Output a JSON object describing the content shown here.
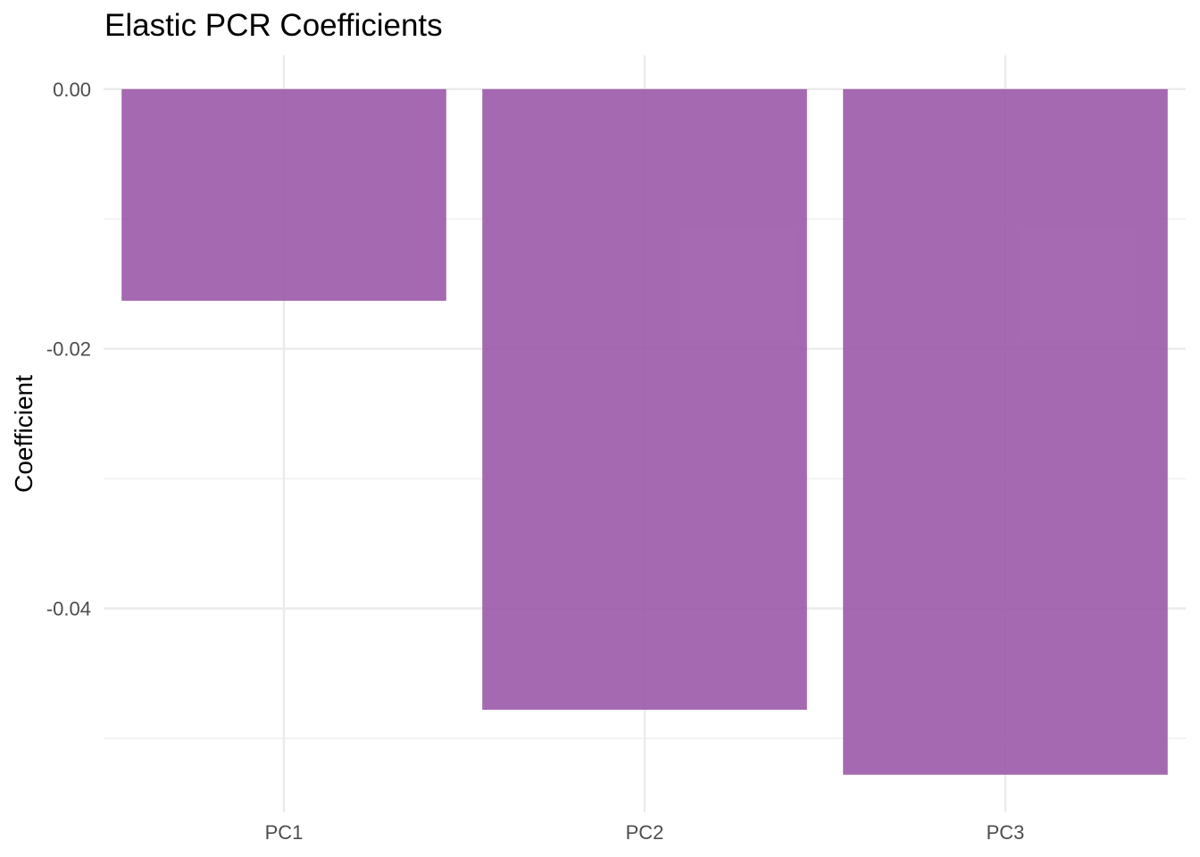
{
  "chart_data": {
    "type": "bar",
    "title": "Elastic PCR Coefficients",
    "xlabel": "",
    "ylabel": "Coefficient",
    "categories": [
      "PC1",
      "PC2",
      "PC3"
    ],
    "values": [
      -0.0163,
      -0.0478,
      -0.0528
    ],
    "ylim": [
      -0.0557,
      0.0026
    ],
    "y_ticks": [
      0,
      -0.02,
      -0.04
    ],
    "y_tick_labels": [
      "0.00",
      "-0.02",
      "-0.04"
    ],
    "y_minor_ticks": [
      -0.01,
      -0.03,
      -0.05
    ],
    "grid": true,
    "legend": "none",
    "bar_color": "#9B59A8",
    "grid_color": "#EBEBEB"
  }
}
